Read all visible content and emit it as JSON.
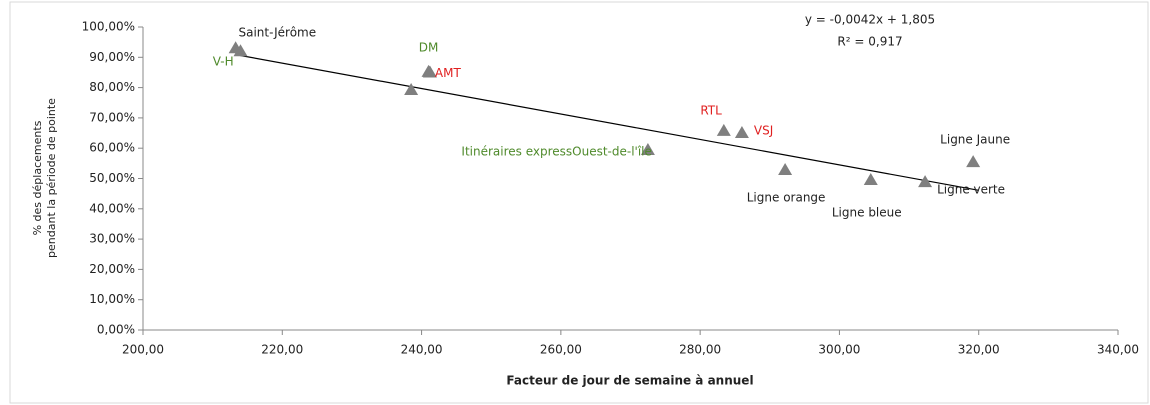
{
  "chart_data": {
    "type": "scatter",
    "x_label": "Facteur de jour de semaine à annuel",
    "y_label": [
      "% des déplacements",
      "pendant la période de pointe"
    ],
    "x": [
      214.0,
      213.3,
      241.0,
      241.2,
      238.5,
      272.5,
      283.4,
      286.0,
      292.2,
      304.5,
      312.3,
      319.2
    ],
    "values": [
      92.0,
      93.0,
      85.2,
      85.0,
      79.2,
      59.4,
      65.7,
      65.0,
      52.8,
      49.5,
      48.8,
      55.4
    ],
    "point_labels": [
      "Saint-Jérôme",
      "V-H",
      "DM",
      "AMT",
      null,
      "Itinéraires expressOuest-de-l'île",
      "RTL",
      "VSJ",
      "Ligne orange",
      "Ligne bleue",
      "Ligne verte",
      "Ligne Jaune"
    ],
    "label_colors": [
      "#222222",
      "#4f8a2b",
      "#4f8a2b",
      "#e02020",
      null,
      "#4f8a2b",
      "#e02020",
      "#e02020",
      "#222222",
      "#222222",
      "#222222",
      "#222222"
    ],
    "marker_color": "#7f7f7f",
    "trendline": {
      "x": [
        213.5,
        320.0
      ],
      "values": [
        90.8,
        46.1
      ],
      "equation": "y = -0,0042x + 1,805",
      "r2": "R² = 0,917",
      "color": "#000000"
    },
    "xlim": [
      200,
      340
    ],
    "xticks": [
      {
        "value": 200,
        "label": "200,00"
      },
      {
        "value": 220,
        "label": "220,00"
      },
      {
        "value": 240,
        "label": "240,00"
      },
      {
        "value": 260,
        "label": "260,00"
      },
      {
        "value": 280,
        "label": "280,00"
      },
      {
        "value": 300,
        "label": "300,00"
      },
      {
        "value": 320,
        "label": "320,00"
      },
      {
        "value": 340,
        "label": "340,00"
      }
    ],
    "ylim": [
      0,
      100
    ],
    "yticks": [
      {
        "value": 0,
        "label": "0,00%"
      },
      {
        "value": 10,
        "label": "10,00%"
      },
      {
        "value": 20,
        "label": "20,00%"
      },
      {
        "value": 30,
        "label": "30,00%"
      },
      {
        "value": 40,
        "label": "40,00%"
      },
      {
        "value": 50,
        "label": "50,00%"
      },
      {
        "value": 60,
        "label": "60,00%"
      },
      {
        "value": 70,
        "label": "70,00%"
      },
      {
        "value": 80,
        "label": "80,00%"
      },
      {
        "value": 90,
        "label": "90,00%"
      },
      {
        "value": 100,
        "label": "100,00%"
      }
    ]
  }
}
